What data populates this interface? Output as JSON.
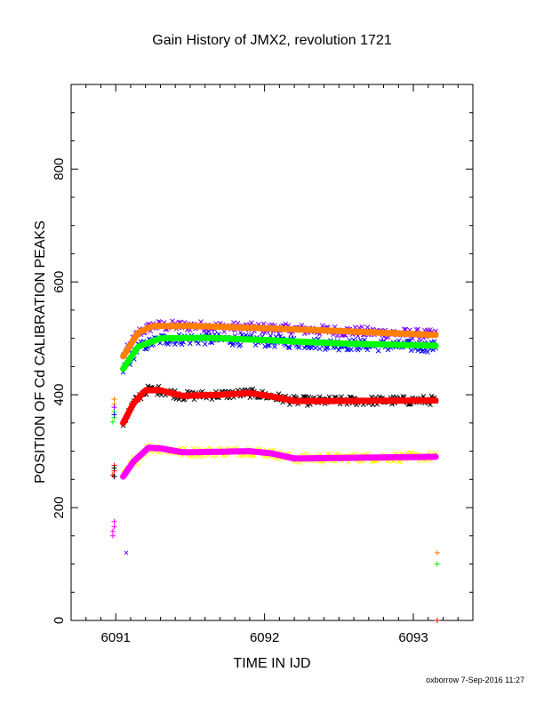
{
  "figure": {
    "title": "Gain History of JMX2, revolution 1721",
    "footer": "oxborrow  7-Sep-2016 11:27"
  },
  "chart_data": {
    "type": "scatter",
    "title": "Gain History of JMX2, revolution 1721",
    "xlabel": "TIME IN IJD",
    "ylabel": "POSITION OF Cd CALIBRATION PEAKS",
    "xlim": [
      6090.7,
      6093.4
    ],
    "ylim": [
      0,
      950
    ],
    "xticks": [
      6091,
      6092,
      6093
    ],
    "yticks": [
      0,
      200,
      400,
      600,
      800
    ],
    "grid": false,
    "legend": "none",
    "measured_series": [
      {
        "marker": "x",
        "color": "#7f00ff",
        "x_start": 6091.05,
        "x_end": 6093.15,
        "level": 520,
        "rise_start": 470,
        "scatter": 9
      },
      {
        "marker": "x",
        "color": "#0000ff",
        "x_start": 6091.05,
        "x_end": 6093.15,
        "level": 494,
        "rise_start": 450,
        "scatter": 10
      },
      {
        "marker": "x",
        "color": "#000000",
        "x_start": 6091.05,
        "x_end": 6093.15,
        "level": 395,
        "rise_start": 355,
        "scatter": 8
      },
      {
        "marker": "x",
        "color": "#ffff00",
        "x_start": 6091.05,
        "x_end": 6093.15,
        "level": 292,
        "rise_start": 255,
        "scatter": 8
      }
    ],
    "fit_curves": [
      {
        "color": "#ff7f00",
        "points": [
          [
            6091.05,
            468
          ],
          [
            6091.15,
            510
          ],
          [
            6091.25,
            522
          ],
          [
            6091.5,
            522
          ],
          [
            6092.0,
            518
          ],
          [
            6092.5,
            513
          ],
          [
            6093.15,
            506
          ]
        ]
      },
      {
        "color": "#00ff00",
        "points": [
          [
            6091.05,
            446
          ],
          [
            6091.15,
            485
          ],
          [
            6091.3,
            500
          ],
          [
            6091.6,
            501
          ],
          [
            6092.0,
            497
          ],
          [
            6092.5,
            491
          ],
          [
            6093.15,
            487
          ]
        ]
      },
      {
        "color": "#ff0000",
        "points": [
          [
            6091.05,
            350
          ],
          [
            6091.12,
            385
          ],
          [
            6091.2,
            408
          ],
          [
            6091.3,
            408
          ],
          [
            6091.45,
            398
          ],
          [
            6091.7,
            400
          ],
          [
            6091.9,
            403
          ],
          [
            6092.05,
            397
          ],
          [
            6092.2,
            389
          ],
          [
            6092.5,
            389
          ],
          [
            6093.15,
            390
          ]
        ]
      },
      {
        "color": "#ff00ff",
        "points": [
          [
            6091.05,
            255
          ],
          [
            6091.12,
            282
          ],
          [
            6091.22,
            306
          ],
          [
            6091.3,
            305
          ],
          [
            6091.45,
            298
          ],
          [
            6091.7,
            299
          ],
          [
            6091.9,
            300
          ],
          [
            6092.05,
            296
          ],
          [
            6092.2,
            287
          ],
          [
            6092.5,
            288
          ],
          [
            6093.15,
            290
          ]
        ]
      }
    ],
    "outlier_points": [
      {
        "marker": "+",
        "color": "#ff7f00",
        "points": [
          [
            6090.99,
            392
          ],
          [
            6090.99,
            383
          ],
          [
            6093.16,
            120
          ]
        ]
      },
      {
        "marker": "+",
        "color": "#00ff00",
        "points": [
          [
            6090.99,
            370
          ],
          [
            6090.99,
            360
          ],
          [
            6090.98,
            352
          ],
          [
            6093.16,
            100
          ]
        ]
      },
      {
        "marker": "+",
        "color": "#7f00ff",
        "points": [
          [
            6090.99,
            378
          ]
        ]
      },
      {
        "marker": "+",
        "color": "#0000ff",
        "points": [
          [
            6090.99,
            365
          ]
        ]
      },
      {
        "marker": "+",
        "color": "#ff0000",
        "points": [
          [
            6090.99,
            275
          ],
          [
            6090.99,
            265
          ],
          [
            6090.98,
            258
          ],
          [
            6093.16,
            0
          ]
        ]
      },
      {
        "marker": "+",
        "color": "#000000",
        "points": [
          [
            6090.99,
            270
          ],
          [
            6090.99,
            255
          ]
        ]
      },
      {
        "marker": "+",
        "color": "#ff00ff",
        "points": [
          [
            6090.99,
            175
          ],
          [
            6090.99,
            166
          ],
          [
            6090.98,
            158
          ],
          [
            6090.98,
            150
          ]
        ]
      },
      {
        "marker": "x",
        "color": "#7f00ff",
        "points": [
          [
            6091.07,
            120
          ]
        ]
      }
    ]
  }
}
